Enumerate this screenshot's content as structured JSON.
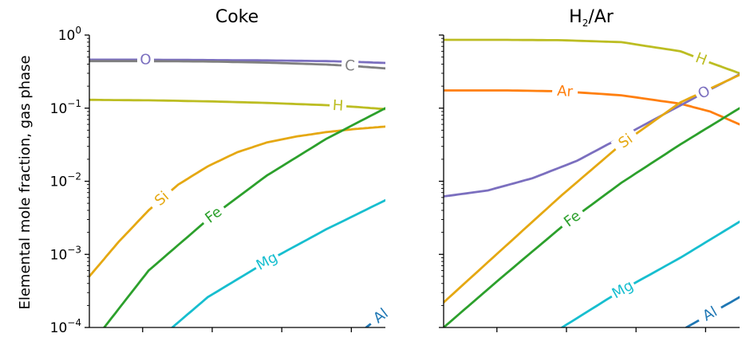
{
  "chart_data": {
    "type": "line",
    "y_scale": "log",
    "ylabel": "Elemental mole fraction, gas phase",
    "ylim": [
      0.0001,
      1
    ],
    "xlim": [
      0,
      1
    ],
    "yticks": [
      {
        "value": 1,
        "base": "10",
        "exp": "0"
      },
      {
        "value": 0.1,
        "base": "10",
        "exp": "−1"
      },
      {
        "value": 0.01,
        "base": "10",
        "exp": "−2"
      },
      {
        "value": 0.001,
        "base": "10",
        "exp": "−3"
      },
      {
        "value": 0.0001,
        "base": "10",
        "exp": "−4"
      }
    ],
    "xticks": [
      0.18,
      0.415,
      0.65,
      0.885
    ],
    "panels": [
      {
        "title": "Coke",
        "title_html": {
          "main": "Coke",
          "sub": "",
          "rest": ""
        },
        "series": [
          {
            "name": "O",
            "color": "#7b6fbf",
            "label_at": 0.19,
            "points": [
              [
                0,
                0.46
              ],
              [
                0.2,
                0.46
              ],
              [
                0.4,
                0.455
              ],
              [
                0.6,
                0.45
              ],
              [
                0.8,
                0.44
              ],
              [
                0.9,
                0.43
              ],
              [
                1,
                0.415
              ]
            ]
          },
          {
            "name": "C",
            "color": "#7f7f7f",
            "label_at": 0.88,
            "points": [
              [
                0,
                0.44
              ],
              [
                0.2,
                0.44
              ],
              [
                0.4,
                0.435
              ],
              [
                0.6,
                0.42
              ],
              [
                0.8,
                0.395
              ],
              [
                0.9,
                0.375
              ],
              [
                1,
                0.35
              ]
            ]
          },
          {
            "name": "H",
            "color": "#bcbd22",
            "label_at": 0.84,
            "points": [
              [
                0,
                0.13
              ],
              [
                0.2,
                0.128
              ],
              [
                0.4,
                0.124
              ],
              [
                0.6,
                0.118
              ],
              [
                0.8,
                0.11
              ],
              [
                0.9,
                0.104
              ],
              [
                1,
                0.097
              ]
            ]
          },
          {
            "name": "Si",
            "color": "#e5a812",
            "label_at": 0.245,
            "points": [
              [
                0,
                0.0005
              ],
              [
                0.1,
                0.0015
              ],
              [
                0.2,
                0.004
              ],
              [
                0.3,
                0.009
              ],
              [
                0.4,
                0.016
              ],
              [
                0.5,
                0.025
              ],
              [
                0.6,
                0.034
              ],
              [
                0.7,
                0.041
              ],
              [
                0.8,
                0.047
              ],
              [
                0.9,
                0.052
              ],
              [
                1,
                0.056
              ]
            ]
          },
          {
            "name": "Fe",
            "color": "#2ca02c",
            "label_at": 0.42,
            "points": [
              [
                0.05,
                0.0001
              ],
              [
                0.2,
                0.0006
              ],
              [
                0.4,
                0.003
              ],
              [
                0.6,
                0.012
              ],
              [
                0.8,
                0.038
              ],
              [
                1,
                0.1
              ]
            ]
          },
          {
            "name": "Mg",
            "color": "#17becf",
            "label_at": 0.6,
            "points": [
              [
                0.28,
                0.0001
              ],
              [
                0.4,
                0.00026
              ],
              [
                0.6,
                0.0008
              ],
              [
                0.8,
                0.0022
              ],
              [
                1,
                0.0055
              ]
            ]
          },
          {
            "name": "Al",
            "color": "#1f77b4",
            "label_at": 0.985,
            "points": [
              [
                0.935,
                0.0001
              ],
              [
                1,
                0.00016
              ]
            ]
          }
        ]
      },
      {
        "title": "H2/Ar",
        "title_html": {
          "main": "H",
          "sub": "2",
          "rest": "/Ar"
        },
        "series": [
          {
            "name": "H",
            "color": "#bcbd22",
            "label_at": 0.87,
            "points": [
              [
                0,
                0.86
              ],
              [
                0.2,
                0.86
              ],
              [
                0.4,
                0.85
              ],
              [
                0.6,
                0.8
              ],
              [
                0.8,
                0.6
              ],
              [
                0.9,
                0.42
              ],
              [
                1,
                0.3
              ]
            ]
          },
          {
            "name": "Ar",
            "color": "#ff7f0e",
            "label_at": 0.41,
            "points": [
              [
                0,
                0.175
              ],
              [
                0.2,
                0.175
              ],
              [
                0.4,
                0.17
              ],
              [
                0.6,
                0.15
              ],
              [
                0.8,
                0.115
              ],
              [
                0.9,
                0.09
              ],
              [
                1,
                0.06
              ]
            ]
          },
          {
            "name": "O",
            "color": "#7b6fbf",
            "label_at": 0.88,
            "points": [
              [
                0,
                0.0062
              ],
              [
                0.15,
                0.0075
              ],
              [
                0.3,
                0.011
              ],
              [
                0.45,
                0.019
              ],
              [
                0.6,
                0.04
              ],
              [
                0.75,
                0.085
              ],
              [
                0.9,
                0.18
              ],
              [
                1,
                0.29
              ]
            ]
          },
          {
            "name": "Si",
            "color": "#e5a812",
            "label_at": 0.615,
            "points": [
              [
                0,
                0.00022
              ],
              [
                0.2,
                0.0012
              ],
              [
                0.4,
                0.0065
              ],
              [
                0.6,
                0.032
              ],
              [
                0.8,
                0.12
              ],
              [
                1,
                0.285
              ]
            ]
          },
          {
            "name": "Fe",
            "color": "#2ca02c",
            "label_at": 0.435,
            "points": [
              [
                0,
                0.0001
              ],
              [
                0.2,
                0.0005
              ],
              [
                0.4,
                0.0024
              ],
              [
                0.6,
                0.0095
              ],
              [
                0.8,
                0.032
              ],
              [
                1,
                0.1
              ]
            ]
          },
          {
            "name": "Mg",
            "color": "#17becf",
            "label_at": 0.605,
            "points": [
              [
                0.4,
                0.0001
              ],
              [
                0.6,
                0.00032
              ],
              [
                0.8,
                0.0009
              ],
              [
                1,
                0.0028
              ]
            ]
          },
          {
            "name": "Al",
            "color": "#1f77b4",
            "label_at": 0.9,
            "points": [
              [
                0.82,
                0.0001
              ],
              [
                1,
                0.00026
              ]
            ]
          }
        ]
      }
    ]
  }
}
